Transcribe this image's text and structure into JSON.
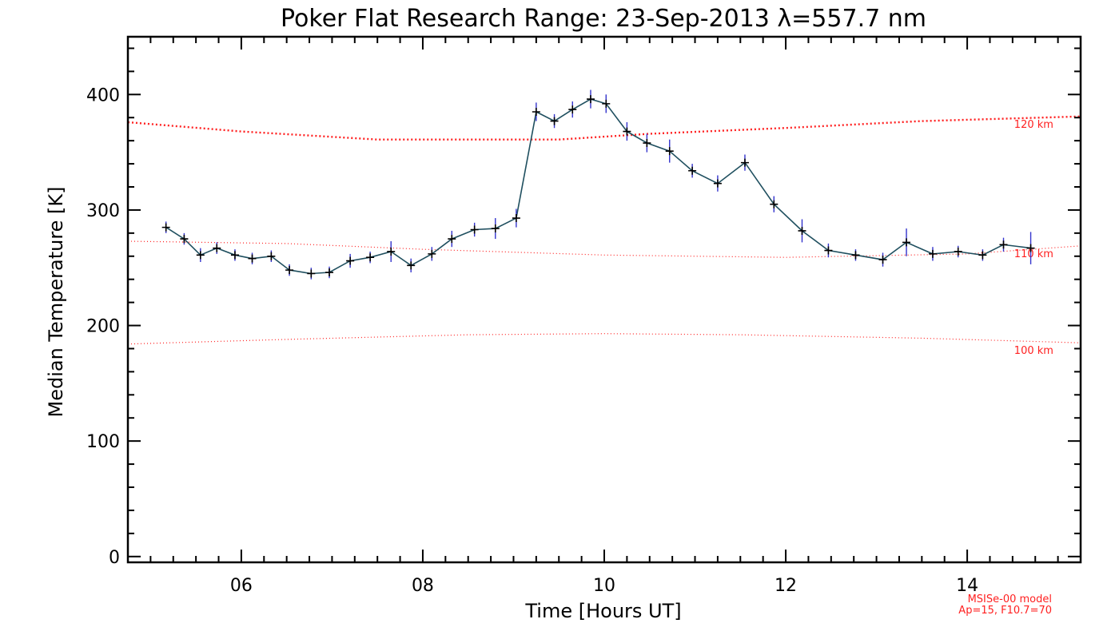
{
  "chart_data": {
    "type": "line",
    "title": "Poker Flat Research Range: 23-Sep-2013 λ=557.7 nm",
    "xlabel": "Time [Hours UT]",
    "ylabel": "Median Temperature [K]",
    "xlim": [
      4.75,
      15.25
    ],
    "ylim": [
      -5,
      450
    ],
    "xticks": [
      6,
      8,
      10,
      12,
      14
    ],
    "xtick_labels": [
      "06",
      "08",
      "10",
      "12",
      "14"
    ],
    "yticks": [
      0,
      100,
      200,
      300,
      400
    ],
    "ytick_labels": [
      "0",
      "100",
      "200",
      "300",
      "400"
    ],
    "grid": false,
    "colors": {
      "data_line": "#1f4f5f",
      "error_bar": "#3333cc",
      "marker": "#000000",
      "model": "#ff2020"
    },
    "series": [
      {
        "x": [
          5.17,
          5.37,
          5.55,
          5.73,
          5.93,
          6.12,
          6.33,
          6.53,
          6.77,
          6.97,
          7.2,
          7.42,
          7.65,
          7.87,
          8.1,
          8.32,
          8.57,
          8.8,
          9.03,
          9.25,
          9.45,
          9.65,
          9.85,
          10.02,
          10.25,
          10.47,
          10.72,
          10.97,
          11.25,
          11.55,
          11.87,
          12.18,
          12.47,
          12.77,
          13.07,
          13.33,
          13.62,
          13.9,
          14.17,
          14.4,
          14.7
        ],
        "y": [
          285,
          275,
          261,
          267,
          261,
          258,
          260,
          248,
          245,
          246,
          256,
          259,
          264,
          252,
          262,
          275,
          283,
          284,
          293,
          385,
          377,
          387,
          396,
          392,
          368,
          358,
          351,
          334,
          323,
          341,
          305,
          282,
          265,
          261,
          257,
          272,
          262,
          264,
          261,
          270,
          267
        ],
        "err": [
          5,
          5,
          6,
          5,
          5,
          5,
          5,
          5,
          5,
          5,
          6,
          5,
          9,
          6,
          6,
          7,
          6,
          9,
          8,
          8,
          6,
          7,
          8,
          8,
          8,
          8,
          10,
          6,
          7,
          7,
          7,
          10,
          6,
          5,
          6,
          12,
          6,
          5,
          5,
          6,
          14
        ]
      }
    ],
    "model_curves": [
      {
        "name": "120 km",
        "x": [
          4.75,
          6.0,
          7.5,
          9.5,
          10.5,
          12.0,
          13.5,
          15.25
        ],
        "y": [
          376,
          368,
          361,
          361,
          366,
          371,
          377,
          381
        ]
      },
      {
        "name": "110 km",
        "x": [
          4.75,
          6.5,
          8.0,
          10.0,
          12.0,
          14.0,
          15.25
        ],
        "y": [
          273,
          271,
          266,
          261,
          259,
          262,
          269
        ]
      },
      {
        "name": "100 km",
        "x": [
          4.75,
          6.5,
          8.5,
          10.0,
          11.5,
          13.5,
          15.25
        ],
        "y": [
          184,
          188,
          192,
          193,
          192,
          189,
          185
        ]
      }
    ],
    "annotations": [
      "MSISe-00 model",
      "Ap=15, F10.7=70"
    ]
  }
}
